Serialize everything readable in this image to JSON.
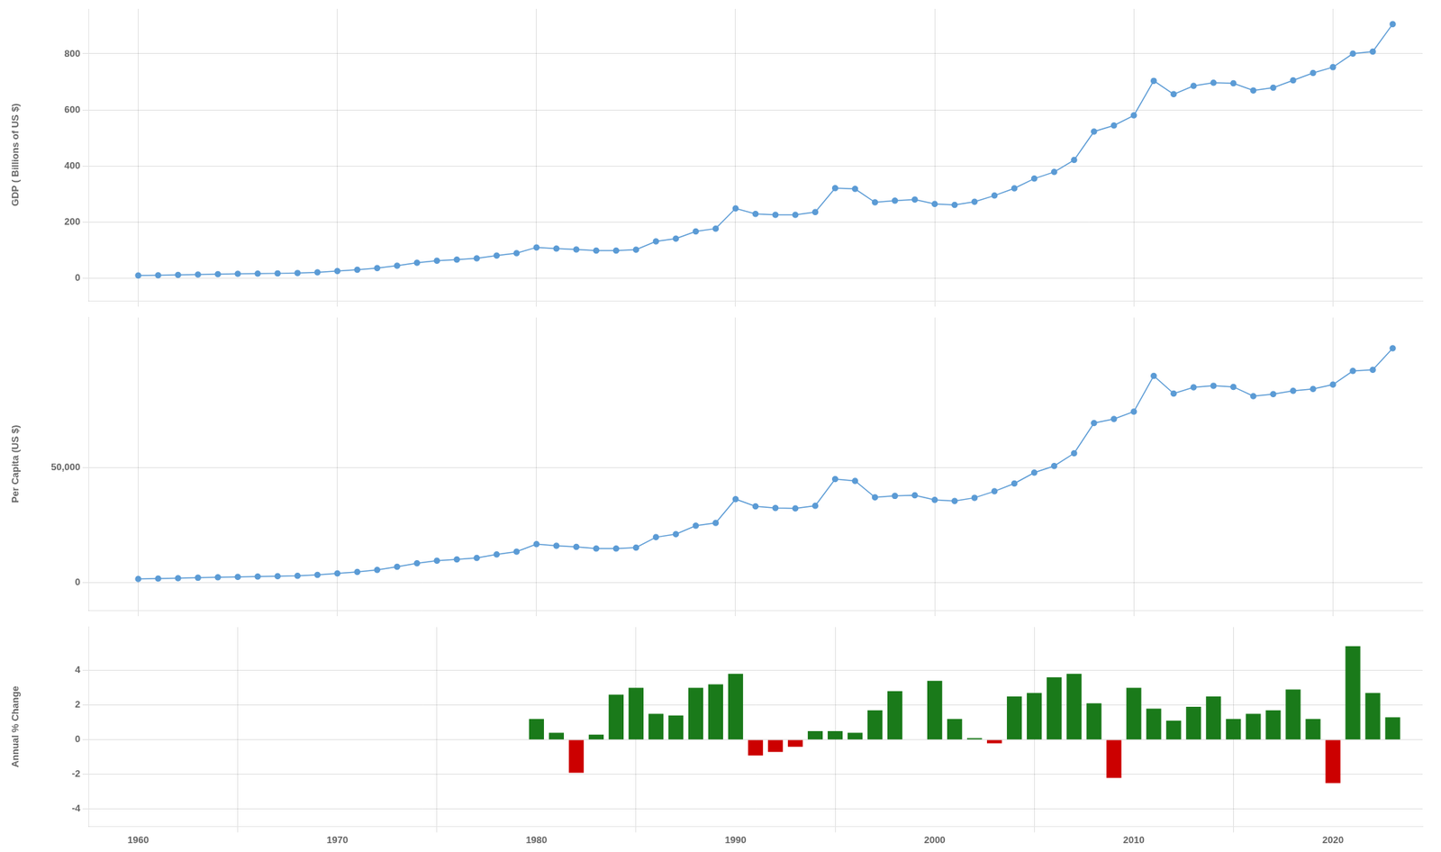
{
  "chart_data": [
    {
      "type": "line",
      "ylabel": "GDP ( Billions of US $)",
      "x": [
        1960,
        1961,
        1962,
        1963,
        1964,
        1965,
        1966,
        1967,
        1968,
        1969,
        1970,
        1971,
        1972,
        1973,
        1974,
        1975,
        1976,
        1977,
        1978,
        1979,
        1980,
        1981,
        1982,
        1983,
        1984,
        1985,
        1986,
        1987,
        1988,
        1989,
        1990,
        1991,
        1992,
        1993,
        1994,
        1995,
        1996,
        1997,
        1998,
        1999,
        2000,
        2001,
        2002,
        2003,
        2004,
        2005,
        2006,
        2007,
        2008,
        2009,
        2010,
        2011,
        2012,
        2013,
        2014,
        2015,
        2016,
        2017,
        2018,
        2019,
        2020,
        2021,
        2022,
        2023
      ],
      "values": [
        9.74,
        10.6,
        11.9,
        13.1,
        14.6,
        15.7,
        16.8,
        17.5,
        18.8,
        21.4,
        25.8,
        30.0,
        36.0,
        44.8,
        55.0,
        62.2,
        66.5,
        70.8,
        81.1,
        89.3,
        110.0,
        105.8,
        102.3,
        98.3,
        98.5,
        102.0,
        131.5,
        141.1,
        166.9,
        177.0,
        249.0,
        229.4,
        225.9,
        226.0,
        235.8,
        320.9,
        318.5,
        270.5,
        276.3,
        280.2,
        264.9,
        261.3,
        272.5,
        294.6,
        320.5,
        355.1,
        378.7,
        421.4,
        522.7,
        544.3,
        580.2,
        703.6,
        655.7,
        685.4,
        696.5,
        694.9,
        669.0,
        678.9,
        705.1,
        731.4,
        752.2,
        800.3,
        807.7,
        905.7
      ],
      "color": "#5b9bd5",
      "marker": "o",
      "xlim": [
        1957.5,
        2024.5
      ],
      "xticks": [
        1960,
        1970,
        1980,
        1990,
        2000,
        2010,
        2020
      ],
      "ylim": [
        -80,
        960
      ],
      "yticks": [
        0,
        200,
        400,
        600,
        800
      ],
      "grid": true,
      "tick_labels": "y"
    },
    {
      "type": "line",
      "ylabel": "Per Capita (US $)",
      "x": [
        1960,
        1961,
        1962,
        1963,
        1964,
        1965,
        1966,
        1967,
        1968,
        1969,
        1970,
        1971,
        1972,
        1973,
        1974,
        1975,
        1976,
        1977,
        1978,
        1979,
        1980,
        1981,
        1982,
        1983,
        1984,
        1985,
        1986,
        1987,
        1988,
        1989,
        1990,
        1991,
        1992,
        1993,
        1994,
        1995,
        1996,
        1997,
        1998,
        1999,
        2000,
        2001,
        2002,
        2003,
        2004,
        2005,
        2006,
        2007,
        2008,
        2009,
        2010,
        2011,
        2012,
        2013,
        2014,
        2015,
        2016,
        2017,
        2018,
        2019,
        2020,
        2021,
        2022,
        2023
      ],
      "values": [
        1600,
        1730,
        1930,
        2110,
        2340,
        2500,
        2660,
        2760,
        2950,
        3340,
        4000,
        4630,
        5540,
        6870,
        8400,
        9490,
        10100,
        10700,
        12200,
        13400,
        16700,
        16000,
        15500,
        14800,
        14800,
        15200,
        19700,
        21000,
        24700,
        25900,
        36200,
        33100,
        32400,
        32200,
        33300,
        44900,
        44100,
        37000,
        37600,
        37900,
        35900,
        35400,
        36800,
        39600,
        43000,
        47700,
        50600,
        56100,
        69200,
        71000,
        74200,
        89700,
        82000,
        84700,
        85400,
        84900,
        80900,
        81800,
        83200,
        84000,
        85900,
        91800,
        92300,
        101700
      ],
      "color": "#5b9bd5",
      "marker": "o",
      "xlim": [
        1957.5,
        2024.5
      ],
      "xticks": [
        1960,
        1970,
        1980,
        1990,
        2000,
        2010,
        2020
      ],
      "ylim": [
        -12000,
        115000
      ],
      "yticks": [
        0,
        {
          "value": 50000,
          "label": "50,000"
        }
      ],
      "grid": true,
      "tick_labels": "y"
    },
    {
      "type": "bar",
      "ylabel": "Annual % Change",
      "x": [
        1980,
        1981,
        1982,
        1983,
        1984,
        1985,
        1986,
        1987,
        1988,
        1989,
        1990,
        1991,
        1992,
        1993,
        1994,
        1995,
        1996,
        1997,
        1998,
        1999,
        2000,
        2001,
        2002,
        2003,
        2004,
        2005,
        2006,
        2007,
        2008,
        2009,
        2010,
        2011,
        2012,
        2013,
        2014,
        2015,
        2016,
        2017,
        2018,
        2019,
        2020,
        2021,
        2022,
        2023
      ],
      "values": [
        1.2,
        0.4,
        -1.9,
        0.3,
        2.6,
        3.0,
        1.5,
        1.4,
        3.0,
        3.2,
        3.8,
        -0.9,
        -0.7,
        -0.4,
        0.5,
        0.5,
        0.4,
        1.7,
        2.8,
        0.0,
        3.4,
        1.2,
        0.1,
        -0.2,
        2.5,
        2.7,
        3.6,
        3.8,
        2.1,
        -2.2,
        3.0,
        1.8,
        1.1,
        1.9,
        2.5,
        1.2,
        1.5,
        1.7,
        2.9,
        1.2,
        -2.5,
        5.4,
        2.7,
        1.3
      ],
      "colors": [
        "#1a7a1a",
        "#1a7a1a",
        "#cc0000",
        "#1a7a1a",
        "#1a7a1a",
        "#1a7a1a",
        "#1a7a1a",
        "#1a7a1a",
        "#1a7a1a",
        "#1a7a1a",
        "#1a7a1a",
        "#cc0000",
        "#cc0000",
        "#cc0000",
        "#1a7a1a",
        "#1a7a1a",
        "#1a7a1a",
        "#1a7a1a",
        "#1a7a1a",
        "#1a7a1a",
        "#1a7a1a",
        "#1a7a1a",
        "#1a7a1a",
        "#cc0000",
        "#1a7a1a",
        "#1a7a1a",
        "#1a7a1a",
        "#1a7a1a",
        "#1a7a1a",
        "#cc0000",
        "#1a7a1a",
        "#1a7a1a",
        "#1a7a1a",
        "#1a7a1a",
        "#1a7a1a",
        "#1a7a1a",
        "#1a7a1a",
        "#1a7a1a",
        "#1a7a1a",
        "#1a7a1a",
        "#cc0000",
        "#1a7a1a",
        "#1a7a1a",
        "#1a7a1a"
      ],
      "xlim": [
        1957.5,
        2024.5
      ],
      "xticks": [
        1960,
        1970,
        1980,
        1990,
        2000,
        2010,
        2020
      ],
      "ylim": [
        -5.0,
        6.5
      ],
      "yticks": [
        -4,
        -2,
        0,
        2,
        4
      ],
      "grid": true
    }
  ]
}
